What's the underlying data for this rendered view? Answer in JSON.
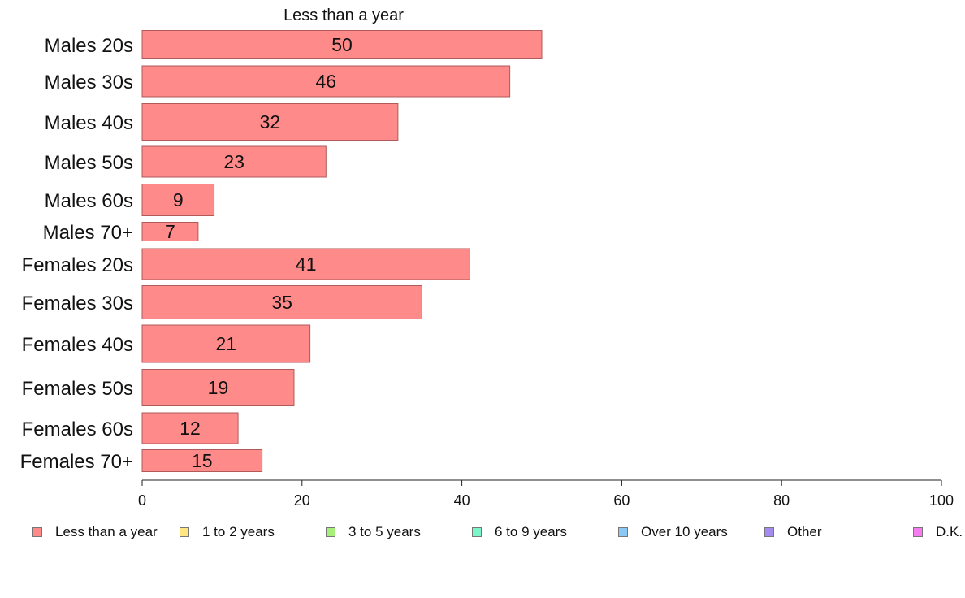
{
  "chart_data": {
    "type": "bar",
    "orientation": "horizontal",
    "title": "Less than a year",
    "categories": [
      "Males 20s",
      "Males 30s",
      "Males 40s",
      "Males 50s",
      "Males 60s",
      "Males 70+",
      "Females 20s",
      "Females 30s",
      "Females 40s",
      "Females 50s",
      "Females 60s",
      "Females 70+"
    ],
    "series": [
      {
        "name": "Less than a year",
        "values": [
          50,
          46,
          32,
          23,
          9,
          7,
          41,
          35,
          21,
          19,
          12,
          15
        ]
      }
    ],
    "xlim": [
      0,
      100
    ],
    "xticks": [
      0,
      20,
      40,
      60,
      80,
      100
    ],
    "grid": false,
    "legend_position": "bottom",
    "legend": [
      "Less than a year",
      "1 to 2 years",
      "3 to 5 years",
      "6 to 9 years",
      "Over 10 years",
      "Other",
      "D.K."
    ],
    "legend_colors": [
      "#ff8a8a",
      "#ffe680",
      "#a6f07a",
      "#7cf5c8",
      "#8cc8f5",
      "#a38bf0",
      "#f57cf0"
    ],
    "bar_color": "#ff8a8a"
  }
}
